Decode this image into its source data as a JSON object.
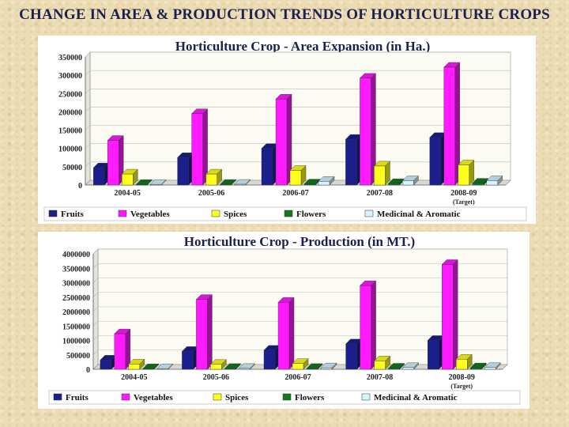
{
  "page_title": "CHANGE IN AREA & PRODUCTION TRENDS OF HORTICULTURE CROPS",
  "colors": {
    "Fruits": "#1a1f8c",
    "Vegetables": "#ff1aff",
    "Spices": "#ffff1a",
    "Flowers": "#0f7a1f",
    "Medicinal & Aromatic": "#d4f4ff"
  },
  "chart_data": [
    {
      "type": "bar",
      "title": "Horticulture Crop - Area Expansion (in Ha.)",
      "categories": [
        "2004-05",
        "2005-06",
        "2006-07",
        "2007-08",
        "2008-09"
      ],
      "category_notes": [
        "",
        "",
        "",
        "",
        "(Target)"
      ],
      "series": [
        {
          "name": "Fruits",
          "values": [
            47000,
            75000,
            100000,
            125000,
            130000
          ]
        },
        {
          "name": "Vegetables",
          "values": [
            122000,
            195000,
            235000,
            292000,
            322000
          ]
        },
        {
          "name": "Spices",
          "values": [
            30000,
            30000,
            40000,
            52000,
            55000
          ]
        },
        {
          "name": "Flowers",
          "values": [
            1000,
            2000,
            3000,
            4000,
            5000
          ]
        },
        {
          "name": "Medicinal & Aromatic",
          "values": [
            1000,
            2000,
            10000,
            12000,
            12000
          ]
        }
      ],
      "y_ticks": [
        "350000",
        "300000",
        "250000",
        "200000",
        "150000",
        "100000",
        "50000",
        "0"
      ],
      "ylim": [
        0,
        350000
      ],
      "legend": "bottom"
    },
    {
      "type": "bar",
      "title": "Horticulture Crop - Production (in MT.)",
      "categories": [
        "2004-05",
        "2005-06",
        "2006-07",
        "2007-08",
        "2008-09"
      ],
      "category_notes": [
        "",
        "",
        "",
        "",
        "(Target)"
      ],
      "series": [
        {
          "name": "Fruits",
          "values": [
            320000,
            620000,
            660000,
            880000,
            1000000
          ]
        },
        {
          "name": "Vegetables",
          "values": [
            1230000,
            2420000,
            2320000,
            2900000,
            3630000
          ]
        },
        {
          "name": "Spices",
          "values": [
            180000,
            170000,
            200000,
            290000,
            350000
          ]
        },
        {
          "name": "Flowers",
          "values": [
            20000,
            30000,
            30000,
            40000,
            50000
          ]
        },
        {
          "name": "Medicinal & Aromatic",
          "values": [
            20000,
            30000,
            50000,
            60000,
            60000
          ]
        }
      ],
      "y_ticks": [
        "4000000",
        "3500000",
        "3000000",
        "2500000",
        "2000000",
        "1500000",
        "1000000",
        "500000",
        "0"
      ],
      "ylim": [
        0,
        4000000
      ],
      "legend": "bottom"
    }
  ]
}
